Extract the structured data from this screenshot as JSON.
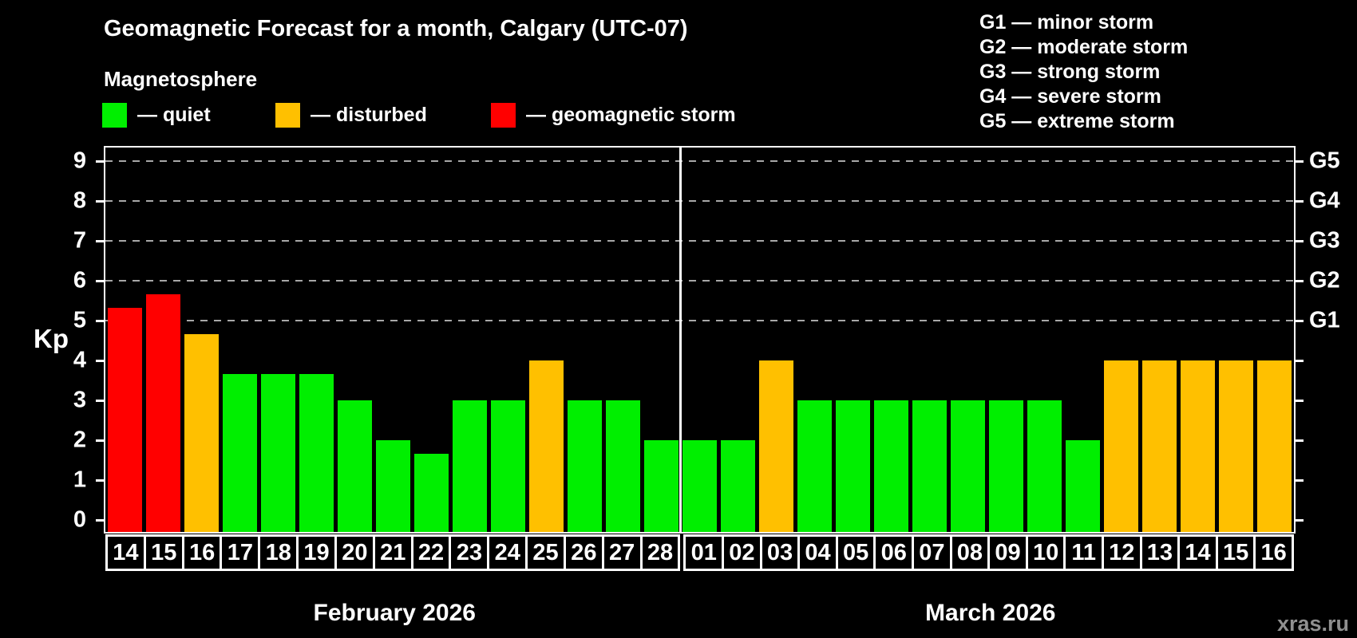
{
  "header": {
    "title": "Geomagnetic Forecast for a month, Calgary (UTC-07)",
    "subtitle": "Magnetosphere"
  },
  "legend": {
    "quiet_label": "— quiet",
    "disturbed_label": "— disturbed",
    "storm_label": "— geomagnetic storm"
  },
  "g_legend": [
    "G1 — minor storm",
    "G2 — moderate storm",
    "G3 — strong storm",
    "G4 — severe storm",
    "G5 — extreme storm"
  ],
  "colors": {
    "quiet": "#00ef00",
    "disturbed": "#ffc000",
    "storm": "#ff0000",
    "axis": "#ffffff",
    "gridline": "#a8a8a8",
    "background": "#000000",
    "watermark": "#8f8f8f"
  },
  "ylabel": "Kp",
  "watermark": "xras.ru",
  "chart_data": {
    "type": "bar",
    "ylabel": "Kp",
    "ylim": [
      0,
      9
    ],
    "yticks": [
      0,
      1,
      2,
      3,
      4,
      5,
      6,
      7,
      8,
      9
    ],
    "gridlines_kp": [
      5,
      6,
      7,
      8,
      9
    ],
    "grid": "dashed horizontal at G-storm levels only",
    "legend_position": "top",
    "right_axis": [
      {
        "kp": 5,
        "label": "G1"
      },
      {
        "kp": 6,
        "label": "G2"
      },
      {
        "kp": 7,
        "label": "G3"
      },
      {
        "kp": 8,
        "label": "G4"
      },
      {
        "kp": 9,
        "label": "G5"
      }
    ],
    "groups": [
      {
        "label": "February 2026",
        "days": [
          {
            "day": "14",
            "kp": 5.33,
            "status": "storm"
          },
          {
            "day": "15",
            "kp": 5.67,
            "status": "storm"
          },
          {
            "day": "16",
            "kp": 4.67,
            "status": "disturbed"
          },
          {
            "day": "17",
            "kp": 3.67,
            "status": "quiet"
          },
          {
            "day": "18",
            "kp": 3.67,
            "status": "quiet"
          },
          {
            "day": "19",
            "kp": 3.67,
            "status": "quiet"
          },
          {
            "day": "20",
            "kp": 3.0,
            "status": "quiet"
          },
          {
            "day": "21",
            "kp": 2.0,
            "status": "quiet"
          },
          {
            "day": "22",
            "kp": 1.67,
            "status": "quiet"
          },
          {
            "day": "23",
            "kp": 3.0,
            "status": "quiet"
          },
          {
            "day": "24",
            "kp": 3.0,
            "status": "quiet"
          },
          {
            "day": "25",
            "kp": 4.0,
            "status": "disturbed"
          },
          {
            "day": "26",
            "kp": 3.0,
            "status": "quiet"
          },
          {
            "day": "27",
            "kp": 3.0,
            "status": "quiet"
          },
          {
            "day": "28",
            "kp": 2.0,
            "status": "quiet"
          }
        ]
      },
      {
        "label": "March 2026",
        "days": [
          {
            "day": "01",
            "kp": 2.0,
            "status": "quiet"
          },
          {
            "day": "02",
            "kp": 2.0,
            "status": "quiet"
          },
          {
            "day": "03",
            "kp": 4.0,
            "status": "disturbed"
          },
          {
            "day": "04",
            "kp": 3.0,
            "status": "quiet"
          },
          {
            "day": "05",
            "kp": 3.0,
            "status": "quiet"
          },
          {
            "day": "06",
            "kp": 3.0,
            "status": "quiet"
          },
          {
            "day": "07",
            "kp": 3.0,
            "status": "quiet"
          },
          {
            "day": "08",
            "kp": 3.0,
            "status": "quiet"
          },
          {
            "day": "09",
            "kp": 3.0,
            "status": "quiet"
          },
          {
            "day": "10",
            "kp": 3.0,
            "status": "quiet"
          },
          {
            "day": "11",
            "kp": 2.0,
            "status": "quiet"
          },
          {
            "day": "12",
            "kp": 4.0,
            "status": "disturbed"
          },
          {
            "day": "13",
            "kp": 4.0,
            "status": "disturbed"
          },
          {
            "day": "14",
            "kp": 4.0,
            "status": "disturbed"
          },
          {
            "day": "15",
            "kp": 4.0,
            "status": "disturbed"
          },
          {
            "day": "16",
            "kp": 4.0,
            "status": "disturbed"
          }
        ]
      }
    ]
  }
}
